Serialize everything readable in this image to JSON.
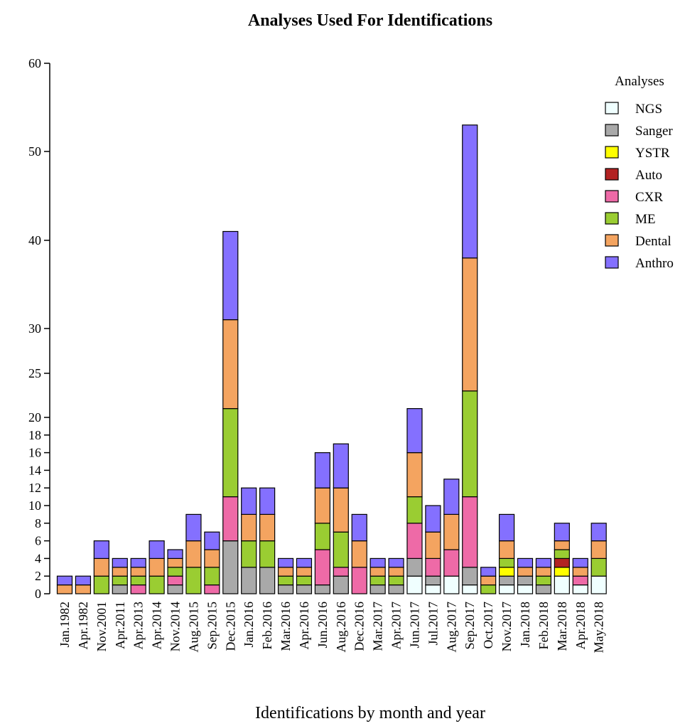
{
  "chart_data": {
    "type": "bar",
    "stacked": true,
    "title": "Analyses Used For Identifications",
    "xlabel": "Identifications by month and year",
    "ylabel": "",
    "ylim": [
      0,
      60
    ],
    "y_ticks": [
      "0",
      "2",
      "4",
      "6",
      "8",
      "10",
      "12",
      "14",
      "16",
      "18",
      "20",
      "25",
      "30",
      "40",
      "50",
      "60"
    ],
    "y_tick_values": [
      0,
      2,
      4,
      6,
      8,
      10,
      12,
      14,
      16,
      18,
      20,
      25,
      30,
      40,
      50,
      60
    ],
    "legend": {
      "title": "Analyses",
      "placement": "top-right"
    },
    "categories": [
      "Jan.1982",
      "Apr.1982",
      "Nov.2001",
      "Apr.2011",
      "Apr.2013",
      "Apr.2014",
      "Nov.2014",
      "Aug.2015",
      "Sep.2015",
      "Dec.2015",
      "Jan.2016",
      "Feb.2016",
      "Mar.2016",
      "Apr.2016",
      "Jun.2016",
      "Aug.2016",
      "Dec.2016",
      "Mar.2017",
      "Apr.2017",
      "Jun.2017",
      "Jul.2017",
      "Aug.2017",
      "Sep.2017",
      "Oct.2017",
      "Nov.2017",
      "Jan.2018",
      "Feb.2018",
      "Mar.2018",
      "Apr.2018",
      "May.2018"
    ],
    "series": [
      {
        "name": "NGS",
        "color": "#f0ffff",
        "values": [
          0,
          0,
          0,
          0,
          0,
          0,
          0,
          0,
          0,
          0,
          0,
          0,
          0,
          0,
          0,
          0,
          0,
          0,
          0,
          2,
          1,
          2,
          1,
          0,
          1,
          1,
          0,
          2,
          1,
          2
        ]
      },
      {
        "name": "Sanger",
        "color": "#a9a9a9",
        "values": [
          0,
          0,
          0,
          1,
          0,
          0,
          1,
          0,
          0,
          6,
          3,
          3,
          1,
          1,
          1,
          2,
          0,
          1,
          1,
          2,
          1,
          0,
          2,
          0,
          1,
          1,
          1,
          0,
          0,
          0
        ]
      },
      {
        "name": "YSTR",
        "color": "#ffff00",
        "values": [
          0,
          0,
          0,
          0,
          0,
          0,
          0,
          0,
          0,
          0,
          0,
          0,
          0,
          0,
          0,
          0,
          0,
          0,
          0,
          0,
          0,
          0,
          0,
          0,
          1,
          0,
          0,
          1,
          0,
          0
        ]
      },
      {
        "name": "Auto",
        "color": "#b22222",
        "values": [
          0,
          0,
          0,
          0,
          0,
          0,
          0,
          0,
          0,
          0,
          0,
          0,
          0,
          0,
          0,
          0,
          0,
          0,
          0,
          0,
          0,
          0,
          0,
          0,
          0,
          0,
          0,
          1,
          0,
          0
        ]
      },
      {
        "name": "CXR",
        "color": "#ee6aa7",
        "values": [
          0,
          0,
          0,
          0,
          1,
          0,
          1,
          0,
          1,
          5,
          0,
          0,
          0,
          0,
          4,
          1,
          3,
          0,
          0,
          4,
          2,
          3,
          8,
          0,
          0,
          0,
          0,
          0,
          1,
          0
        ]
      },
      {
        "name": "ME",
        "color": "#9acd32",
        "values": [
          0,
          0,
          2,
          1,
          1,
          2,
          1,
          3,
          2,
          10,
          3,
          3,
          1,
          1,
          3,
          4,
          0,
          1,
          1,
          3,
          0,
          0,
          12,
          1,
          1,
          0,
          1,
          1,
          0,
          2
        ]
      },
      {
        "name": "Dental",
        "color": "#f4a460",
        "values": [
          1,
          1,
          2,
          1,
          1,
          2,
          1,
          3,
          2,
          10,
          3,
          3,
          1,
          1,
          4,
          5,
          3,
          1,
          1,
          5,
          3,
          4,
          15,
          1,
          2,
          1,
          1,
          1,
          1,
          2
        ]
      },
      {
        "name": "Anthro",
        "color": "#8470ff",
        "values": [
          1,
          1,
          2,
          1,
          1,
          2,
          1,
          3,
          2,
          10,
          3,
          3,
          1,
          1,
          4,
          5,
          3,
          1,
          1,
          5,
          3,
          4,
          15,
          1,
          3,
          1,
          1,
          2,
          1,
          2
        ]
      }
    ]
  }
}
